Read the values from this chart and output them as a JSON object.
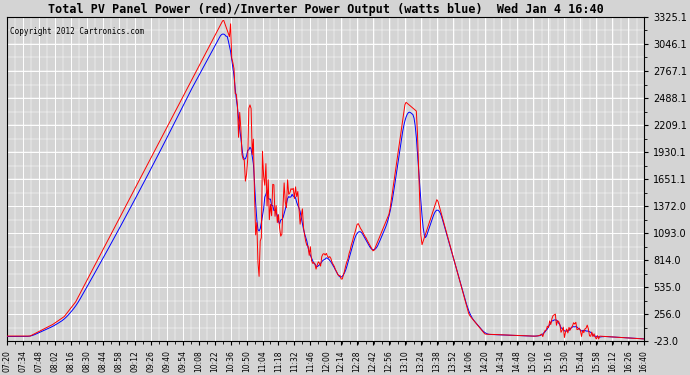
{
  "title": "Total PV Panel Power (red)/Inverter Power Output (watts blue)  Wed Jan 4 16:40",
  "copyright_text": "Copyright 2012 Cartronics.com",
  "background_color": "#d4d4d4",
  "plot_bg_color": "#d4d4d4",
  "grid_color": "white",
  "red_line_color": "red",
  "blue_line_color": "blue",
  "ylim": [
    -23.0,
    3325.1
  ],
  "yticks": [
    -23.0,
    256.0,
    535.0,
    814.0,
    1093.0,
    1372.0,
    1651.1,
    1930.1,
    2209.1,
    2488.1,
    2767.1,
    3046.1,
    3325.1
  ],
  "x_labels": [
    "07:20",
    "07:34",
    "07:48",
    "08:02",
    "08:16",
    "08:30",
    "08:44",
    "08:58",
    "09:12",
    "09:26",
    "09:40",
    "09:54",
    "10:08",
    "10:22",
    "10:36",
    "10:50",
    "11:04",
    "11:18",
    "11:32",
    "11:46",
    "12:00",
    "12:14",
    "12:28",
    "12:42",
    "12:56",
    "13:10",
    "13:24",
    "13:38",
    "13:52",
    "14:06",
    "14:20",
    "14:34",
    "14:48",
    "15:02",
    "15:16",
    "15:30",
    "15:44",
    "15:58",
    "16:12",
    "16:26",
    "16:40"
  ]
}
